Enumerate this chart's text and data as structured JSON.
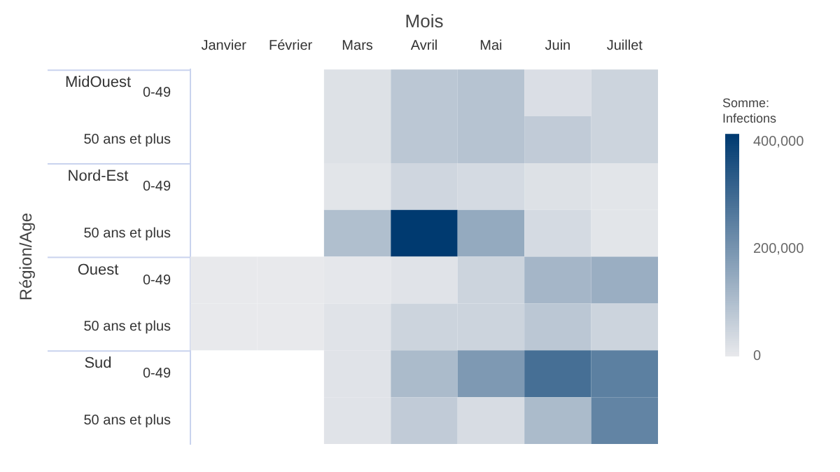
{
  "chart_data": {
    "type": "heatmap",
    "xlabel": "Mois",
    "ylabel": "Région/Age",
    "clabel": "Somme: Infections",
    "categories": [
      "Janvier",
      "Février",
      "Mars",
      "Avril",
      "Mai",
      "Juin",
      "Juillet"
    ],
    "y_categories": [
      "0-49",
      "50 ans et plus",
      "0-49",
      "50 ans et plus",
      "0-49",
      "50 ans et plus",
      "0-49",
      "50 ans et plus"
    ],
    "y2_categories": [
      "MidOuest",
      null,
      "Nord-Est",
      null,
      "Ouest",
      null,
      "Sud",
      null
    ],
    "cells": [
      [
        null,
        null,
        20000,
        80000,
        90000,
        25000,
        50000
      ],
      [
        null,
        null,
        20000,
        80000,
        90000,
        70000,
        50000
      ],
      [
        null,
        null,
        10000,
        45000,
        35000,
        20000,
        10000
      ],
      [
        null,
        null,
        100000,
        415000,
        150000,
        35000,
        10000
      ],
      [
        0,
        0,
        5000,
        15000,
        50000,
        120000,
        140000
      ],
      [
        0,
        0,
        15000,
        50000,
        50000,
        80000,
        50000
      ],
      [
        null,
        null,
        15000,
        110000,
        190000,
        290000,
        250000
      ],
      [
        null,
        null,
        15000,
        70000,
        30000,
        110000,
        240000
      ]
    ],
    "clim": [
      0,
      415000
    ],
    "cticks": [
      0,
      {
        "value": 200000,
        "label": "200,000"
      },
      {
        "value": 400000,
        "label": "400,000"
      }
    ]
  }
}
